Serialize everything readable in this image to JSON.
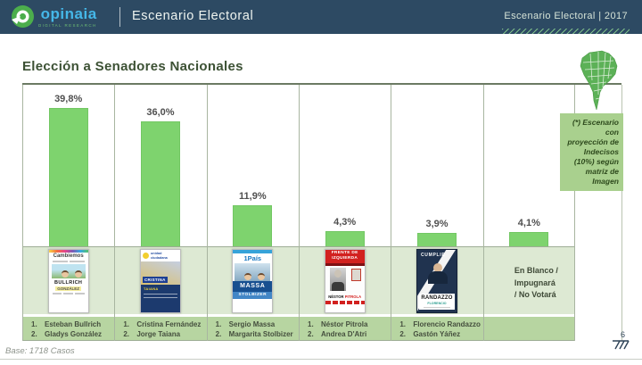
{
  "header": {
    "logo_text": "opinaia",
    "logo_subtext": "DIGITAL RESEARCH",
    "section_title": "Escenario Electoral",
    "right_text": "Escenario Electoral | 2017"
  },
  "page": {
    "title": "Elección a Senadores Nacionales",
    "note": "(*) Escenario con proyección de Indecisos (10%) según matriz de Imagen",
    "base_text": "Base: 1718 Casos",
    "page_number": "6"
  },
  "chart_data": {
    "type": "bar",
    "title": "Elección a Senadores Nacionales",
    "unit": "percent",
    "ylim": [
      0,
      45
    ],
    "grid": "column-separators",
    "bar_color": "#7ed36e",
    "categories": [
      "Cambiemos — Bullrich / González",
      "Unidad Ciudadana — Fernández / Taiana",
      "1País — Massa / Stolbizer",
      "Frente de Izquierda — Pitrola / D'Atri",
      "Cumplir — Randazzo / Yáñez",
      "En Blanco / Impugnará / No Votará"
    ],
    "values": [
      39.8,
      36.0,
      11.9,
      4.3,
      3.9,
      4.1
    ],
    "value_labels": [
      "39,8%",
      "36,0%",
      "11,9%",
      "4,3%",
      "3,9%",
      "4,1%"
    ]
  },
  "columns": [
    {
      "value": 39.8,
      "value_label": "39,8%",
      "ballot": {
        "party": "Cambiemos",
        "name1": "BULLRICH",
        "name2": "GONZÁLEZ"
      },
      "candidates": [
        {
          "n": "1.",
          "name": "Esteban Bullrich"
        },
        {
          "n": "2.",
          "name": "Gladys González"
        }
      ]
    },
    {
      "value": 36.0,
      "value_label": "36,0%",
      "ballot": {
        "party": "unidad ciudadana",
        "name1": "CRISTINA",
        "name2": "TAIANA"
      },
      "candidates": [
        {
          "n": "1.",
          "name": "Cristina Fernández"
        },
        {
          "n": "2.",
          "name": "Jorge Taiana"
        }
      ]
    },
    {
      "value": 11.9,
      "value_label": "11,9%",
      "ballot": {
        "party": "1País",
        "name1": "MASSA",
        "name2": "STOLBIZER"
      },
      "candidates": [
        {
          "n": "1.",
          "name": "Sergio Massa"
        },
        {
          "n": "2.",
          "name": "Margarita Stolbizer"
        }
      ]
    },
    {
      "value": 4.3,
      "value_label": "4,3%",
      "ballot": {
        "party1": "FRENTE DE",
        "party2": "IZQUIERDA",
        "name1": "NÉSTOR",
        "name2": "PITROLA"
      },
      "candidates": [
        {
          "n": "1.",
          "name": "Néstor Pitrola"
        },
        {
          "n": "2.",
          "name": "Andrea D'Atri"
        }
      ]
    },
    {
      "value": 3.9,
      "value_label": "3,9%",
      "ballot": {
        "party": "CUMPLIR",
        "name1": "RANDAZZO",
        "sub": "FLORENCIO"
      },
      "candidates": [
        {
          "n": "1.",
          "name": "Florencio Randazzo"
        },
        {
          "n": "2.",
          "name": "Gastón Yáñez"
        }
      ]
    },
    {
      "value": 4.1,
      "value_label": "4,1%",
      "blank_lines": [
        "En Blanco /",
        "Impugnará",
        "/ No Votará"
      ],
      "candidates": []
    }
  ],
  "colors": {
    "header_bg": "#2d4a63",
    "bar_green": "#7ed36e",
    "band_light": "#dde9d3",
    "band_dark": "#b7d5a1",
    "note_bg": "#a9d08e",
    "logo_blue": "#45b7e8",
    "logo_green": "#4cae4c"
  }
}
